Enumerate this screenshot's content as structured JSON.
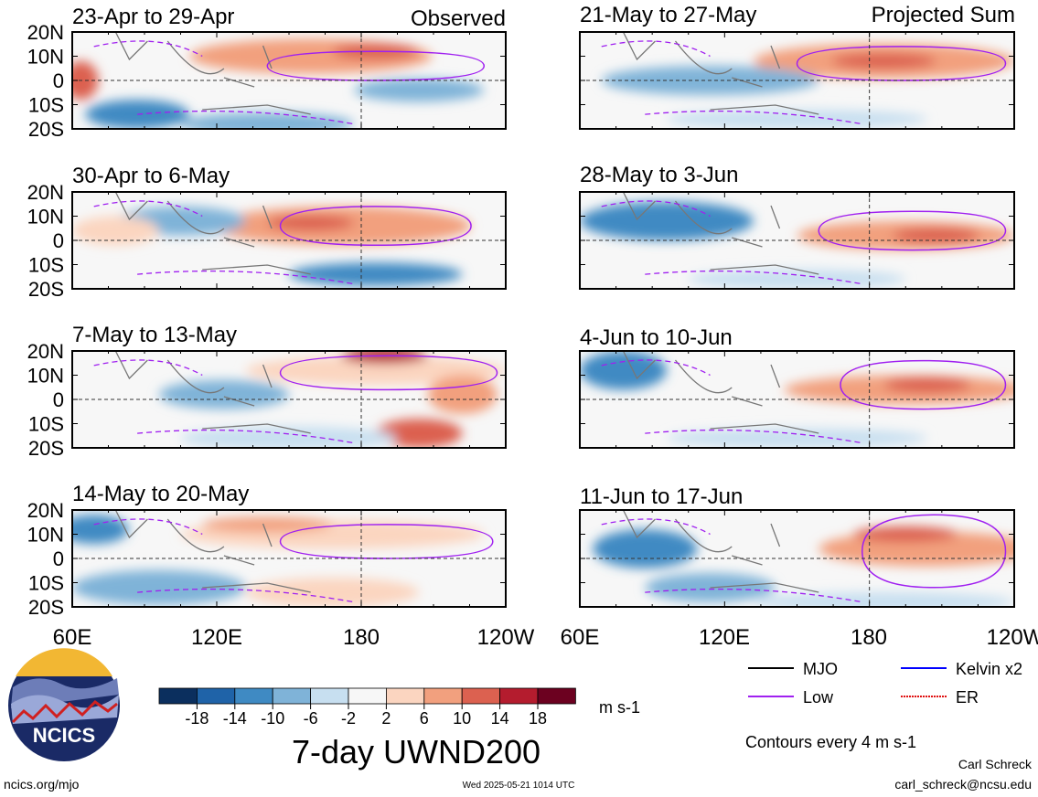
{
  "figure": {
    "observed_label": "Observed",
    "projected_label": "Projected Sum",
    "main_title": "7-day UWND200",
    "units": "m s-1",
    "contour_note": "Contours every 4 m s-1",
    "author": "Carl Schreck",
    "email": "carl_schreck@ncsu.edu",
    "site": "ncics.org/mjo",
    "timestamp": "Wed 2025-05-21 1014 UTC",
    "logo_text": "NCICS"
  },
  "axes": {
    "y_labels": [
      "20N",
      "10N",
      "0",
      "10S",
      "20S"
    ],
    "x_labels": [
      "60E",
      "120E",
      "180",
      "120W"
    ]
  },
  "panels": {
    "left": [
      {
        "title": "23-Apr to 29-Apr"
      },
      {
        "title": "30-Apr to 6-May"
      },
      {
        "title": "7-May to 13-May"
      },
      {
        "title": "14-May to 20-May"
      }
    ],
    "right": [
      {
        "title": "21-May to 27-May"
      },
      {
        "title": "28-May to 3-Jun"
      },
      {
        "title": "4-Jun to 10-Jun"
      },
      {
        "title": "11-Jun to 17-Jun"
      }
    ]
  },
  "colorbar": {
    "ticks": [
      "-18",
      "-14",
      "-10",
      "-6",
      "-2",
      "2",
      "6",
      "10",
      "14",
      "18"
    ],
    "colors": [
      "#0b2f5e",
      "#1f63a8",
      "#3f8ac3",
      "#7fb3d8",
      "#c7dff0",
      "#f7f7f7",
      "#fbd5c0",
      "#f2a07e",
      "#dc6150",
      "#b41c2e",
      "#6c0120"
    ]
  },
  "legend": {
    "items": [
      {
        "label": "MJO",
        "color": "#000000"
      },
      {
        "label": "Kelvin x2",
        "color": "#0000ff"
      },
      {
        "label": "Low",
        "color": "#a020f0"
      },
      {
        "label": "ER",
        "color": "#e01010"
      }
    ]
  }
}
